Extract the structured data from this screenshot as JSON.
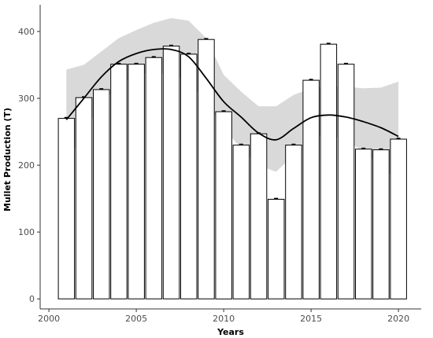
{
  "chart_data": {
    "type": "bar",
    "xlabel": "Years",
    "ylabel": "Mullet Production (T)",
    "x": [
      2001,
      2002,
      2003,
      2004,
      2005,
      2006,
      2007,
      2008,
      2009,
      2010,
      2011,
      2012,
      2013,
      2014,
      2015,
      2016,
      2017,
      2018,
      2019,
      2020
    ],
    "values": [
      270,
      301,
      313,
      351,
      351,
      361,
      378,
      366,
      388,
      280,
      230,
      247,
      149,
      230,
      327,
      381,
      351,
      224,
      223,
      239
    ],
    "xlim": [
      1999.5,
      2021.3
    ],
    "ylim": [
      -15,
      440
    ],
    "xticks": [
      2000,
      2005,
      2010,
      2015,
      2020
    ],
    "yticks": [
      0,
      100,
      200,
      300,
      400
    ],
    "grid": false,
    "smooth_trend": {
      "x": [
        2001,
        2002,
        2003,
        2004,
        2005,
        2006,
        2007,
        2008,
        2009,
        2010,
        2011,
        2012,
        2013,
        2014,
        2015,
        2016,
        2017,
        2018,
        2019,
        2020
      ],
      "y": [
        268,
        300,
        332,
        355,
        367,
        373,
        373,
        362,
        330,
        295,
        272,
        248,
        238,
        255,
        271,
        275,
        272,
        265,
        256,
        243
      ],
      "lower": [
        200,
        250,
        290,
        320,
        335,
        340,
        335,
        325,
        295,
        255,
        225,
        200,
        190,
        215,
        240,
        245,
        238,
        220,
        198,
        175
      ],
      "upper": [
        343,
        350,
        370,
        390,
        402,
        413,
        420,
        416,
        390,
        335,
        310,
        288,
        288,
        305,
        315,
        318,
        317,
        315,
        316,
        325
      ]
    },
    "colors": {
      "bar_fill": "#ffffff",
      "bar_stroke": "#000000",
      "ribbon": "#d9d9d9",
      "trend_line": "#000000",
      "axis": "#333333",
      "tick_text": "#4d4d4d"
    }
  }
}
